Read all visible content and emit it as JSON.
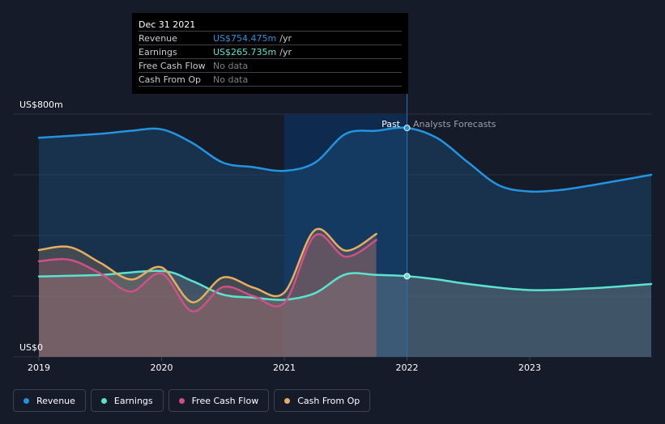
{
  "chart_data": {
    "type": "area",
    "y_top_label": "US$800m",
    "y_bottom_label": "US$0",
    "ylim": [
      0,
      800
    ],
    "x_ticks": [
      "2019",
      "2020",
      "2021",
      "2022",
      "2023"
    ],
    "xlim": [
      2018.9,
      2023.99
    ],
    "past_label": "Past",
    "forecast_label": "Analysts Forecasts",
    "divider_x": 2022.0,
    "highlight_range": [
      2021.0,
      2022.0
    ],
    "series": [
      {
        "name": "Revenue",
        "color": "#2394df",
        "x": [
          2019.0,
          2019.5,
          2019.75,
          2020.0,
          2020.25,
          2020.5,
          2020.75,
          2021.0,
          2021.25,
          2021.5,
          2021.75,
          2022.0,
          2022.25,
          2022.5,
          2022.75,
          2023.0,
          2023.25,
          2023.5,
          2023.99
        ],
        "y": [
          722,
          735,
          745,
          750,
          705,
          640,
          625,
          613,
          640,
          735,
          745,
          754.475,
          720,
          640,
          565,
          545,
          550,
          565,
          600
        ]
      },
      {
        "name": "Earnings",
        "color": "#5be3cf",
        "x": [
          2019.0,
          2019.5,
          2020.0,
          2020.25,
          2020.5,
          2020.75,
          2021.0,
          2021.25,
          2021.5,
          2021.75,
          2022.0,
          2022.25,
          2022.5,
          2023.0,
          2023.5,
          2023.99
        ],
        "y": [
          265,
          270,
          283,
          250,
          205,
          195,
          188,
          210,
          272,
          270,
          265.735,
          255,
          240,
          220,
          226,
          240
        ]
      },
      {
        "name": "Free Cash Flow",
        "color": "#d14f88",
        "x": [
          2019.0,
          2019.25,
          2019.5,
          2019.75,
          2020.0,
          2020.25,
          2020.5,
          2020.75,
          2021.0,
          2021.25,
          2021.5,
          2021.75
        ],
        "y": [
          315,
          320,
          275,
          215,
          275,
          150,
          230,
          200,
          178,
          400,
          330,
          385
        ]
      },
      {
        "name": "Cash From Op",
        "color": "#e8ad5e",
        "x": [
          2019.0,
          2019.25,
          2019.5,
          2019.75,
          2020.0,
          2020.25,
          2020.5,
          2020.75,
          2021.0,
          2021.25,
          2021.5,
          2021.75
        ],
        "y": [
          352,
          362,
          310,
          255,
          295,
          180,
          262,
          228,
          212,
          418,
          350,
          405
        ]
      }
    ]
  },
  "tooltip": {
    "date": "Dec 31 2021",
    "rows": [
      {
        "label": "Revenue",
        "value": "US$754.475m",
        "unit": "/yr"
      },
      {
        "label": "Earnings",
        "value": "US$265.735m",
        "unit": "/yr"
      },
      {
        "label": "Free Cash Flow",
        "value": "No data",
        "unit": ""
      },
      {
        "label": "Cash From Op",
        "value": "No data",
        "unit": ""
      }
    ]
  },
  "legend": [
    {
      "label": "Revenue",
      "color": "#2394df"
    },
    {
      "label": "Earnings",
      "color": "#5be3cf"
    },
    {
      "label": "Free Cash Flow",
      "color": "#d14f88"
    },
    {
      "label": "Cash From Op",
      "color": "#e8ad5e"
    }
  ]
}
